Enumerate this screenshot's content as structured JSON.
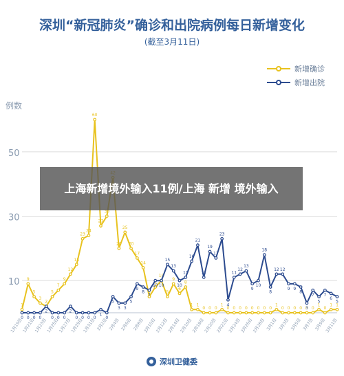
{
  "header": {
    "title": "深圳“新冠肺炎”确诊和出院病例每日新增变化",
    "subtitle": "(截至3月11日)"
  },
  "legend": {
    "confirmed": "新增确诊",
    "discharged": "新增出院"
  },
  "colors": {
    "confirmed": "#e8c21e",
    "discharged": "#2c4b8f",
    "grid": "#dcdcdc",
    "axis": "#8a9bb0"
  },
  "banner": {
    "text": "上海新增境外输入11例/上海 新增 境外输入"
  },
  "footer": {
    "org": "深圳卫健委"
  },
  "chart_data": {
    "type": "line",
    "ylabel": "例数",
    "ylim": [
      0,
      60
    ],
    "yticks": [
      10,
      30,
      50
    ],
    "categories": [
      "1/19",
      "1/20",
      "1/21",
      "1/22",
      "1/23",
      "1/24",
      "1/25",
      "1/26",
      "1/27",
      "1/28",
      "1/29",
      "1/30",
      "1/31",
      "2/1",
      "2/2",
      "2/3",
      "2/4",
      "2/5",
      "2/6",
      "2/7",
      "2/8",
      "2/9",
      "2/10",
      "2/11",
      "2/12",
      "2/13",
      "2/14",
      "2/15",
      "2/16",
      "2/17",
      "2/18",
      "2/19",
      "2/20",
      "2/21",
      "2/22",
      "2/23",
      "2/24",
      "2/25",
      "2/26",
      "2/27",
      "2/28",
      "2/29",
      "3/1",
      "3/2",
      "3/3",
      "3/4",
      "3/5",
      "3/6",
      "3/7",
      "3/8",
      "3/9",
      "3/10",
      "3/11"
    ],
    "x_tick_labels": [
      "1月19日",
      "1月21日",
      "1月23日",
      "1月25日",
      "1月27日",
      "1月29日",
      "1月31日",
      "2月2日",
      "2月4日",
      "2月6日",
      "2月8日",
      "2月10日",
      "2月12日",
      "2月14日",
      "2月16日",
      "2月18日",
      "2月20日",
      "2月22日",
      "2月24日",
      "2月26日",
      "2月28日",
      "3月1日",
      "3月3日",
      "3月5日",
      "3月7日",
      "3月9日",
      "3月11日"
    ],
    "series": [
      {
        "name": "新增确诊",
        "values": [
          1,
          9,
          5,
          3,
          2,
          5,
          7,
          9,
          12,
          15,
          23,
          24,
          60,
          27,
          30,
          42,
          20,
          25,
          20,
          17,
          14,
          5,
          8,
          10,
          5,
          9,
          6,
          8,
          1,
          1,
          0,
          0,
          0,
          1,
          0,
          0,
          0,
          0,
          0,
          0,
          0,
          0,
          1,
          0,
          0,
          0,
          0,
          0,
          0,
          1,
          0,
          1,
          1
        ]
      },
      {
        "name": "新增出院",
        "values": [
          0,
          0,
          0,
          0,
          2,
          0,
          0,
          0,
          2,
          0,
          0,
          0,
          0,
          1,
          0,
          5,
          3,
          3,
          5,
          9,
          8,
          7,
          10,
          10,
          15,
          13,
          10,
          11,
          16,
          21,
          11,
          19,
          17,
          23,
          4,
          11,
          12,
          13,
          9,
          10,
          18,
          8,
          12,
          12,
          9,
          9,
          8,
          3,
          7,
          5,
          7,
          6,
          5
        ]
      }
    ]
  }
}
